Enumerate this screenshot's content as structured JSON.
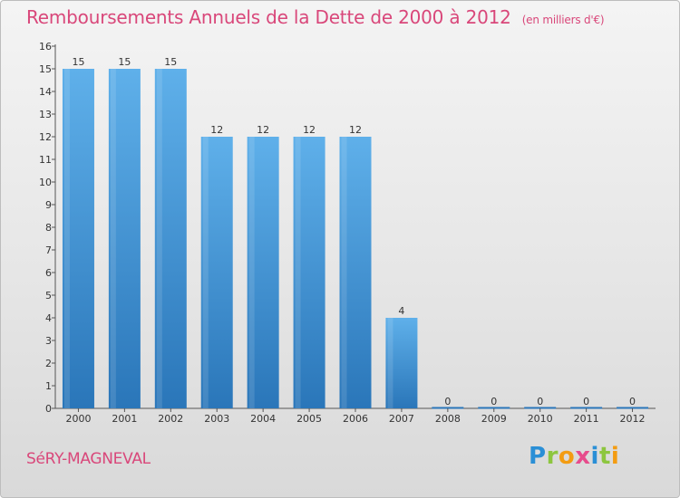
{
  "title": "Remboursements Annuels de la Dette de 2000 à 2012",
  "unit": "(en milliers d'€)",
  "commune": "SéRY-MAGNEVAL",
  "logo": {
    "letters": [
      {
        "ch": "P",
        "color": "#2a8fd6"
      },
      {
        "ch": "r",
        "color": "#8dc63f"
      },
      {
        "ch": "o",
        "color": "#f39c12"
      },
      {
        "ch": "x",
        "color": "#e74c8c"
      },
      {
        "ch": "i",
        "color": "#2a8fd6"
      },
      {
        "ch": "t",
        "color": "#8dc63f"
      },
      {
        "ch": "i",
        "color": "#f39c12"
      }
    ]
  },
  "colors": {
    "bar": "#3d8fd0",
    "bar_light": "#5fb0ea",
    "bar_dark": "#2a76b9",
    "title": "#d9477a"
  },
  "chart_data": {
    "type": "bar",
    "categories": [
      "2000",
      "2001",
      "2002",
      "2003",
      "2004",
      "2005",
      "2006",
      "2007",
      "2008",
      "2009",
      "2010",
      "2011",
      "2012"
    ],
    "values": [
      15,
      15,
      15,
      12,
      12,
      12,
      12,
      4,
      0,
      0,
      0,
      0,
      0
    ],
    "title": "Remboursements Annuels de la Dette de 2000 à 2012",
    "xlabel": "",
    "ylabel": "",
    "ylim": [
      0,
      16
    ],
    "yticks": [
      0,
      1,
      2,
      3,
      4,
      5,
      6,
      7,
      8,
      9,
      10,
      11,
      12,
      13,
      14,
      15,
      16
    ],
    "grid": false,
    "legend": "none"
  }
}
